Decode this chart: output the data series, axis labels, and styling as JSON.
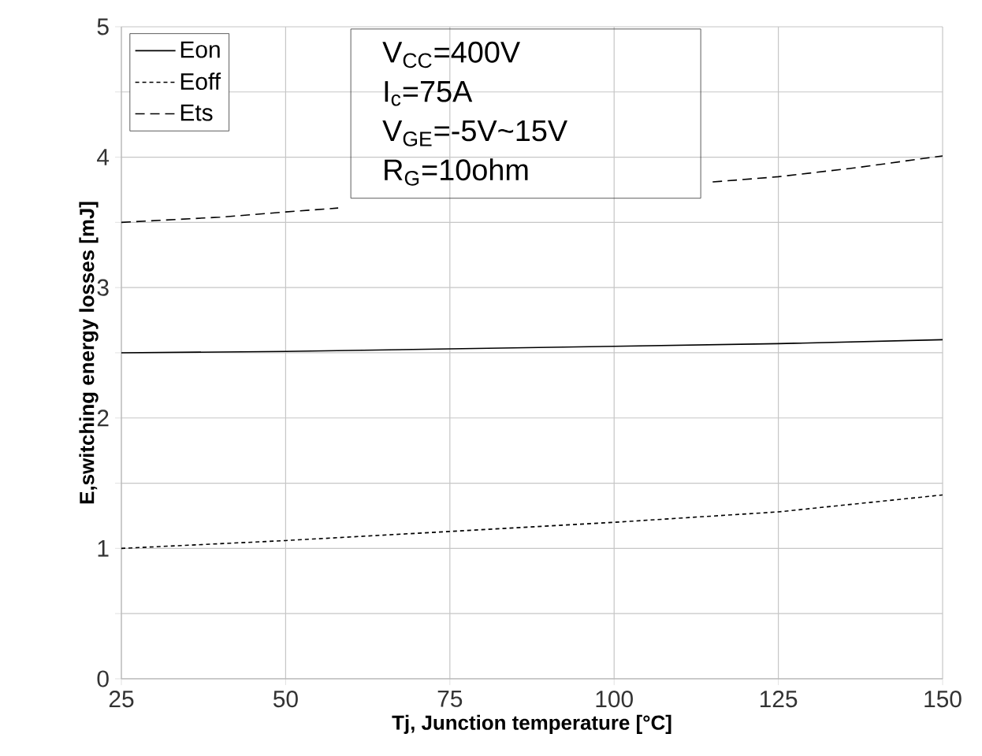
{
  "chart_data": {
    "type": "line",
    "xlabel": "Tj, Junction temperature [°C]",
    "ylabel": "E,switching energy losses [mJ]",
    "xlim": [
      25,
      150
    ],
    "xticks": [
      25,
      50,
      75,
      100,
      125,
      150
    ],
    "ylim": [
      0,
      5
    ],
    "yticks": [
      0,
      {
        "value": 0.5,
        "label": null
      },
      1,
      {
        "value": 1.5,
        "label": null
      },
      2,
      {
        "value": 2.5,
        "label": null
      },
      3,
      {
        "value": 3.5,
        "label": null
      },
      4,
      {
        "value": 4.5,
        "label": null
      },
      5
    ],
    "grid": true,
    "legend": "top left",
    "series": [
      {
        "name": "Eon",
        "color": "#000000",
        "line_style": "solid",
        "x": [
          25,
          50,
          75,
          100,
          125,
          150
        ],
        "values": [
          2.5,
          2.51,
          2.53,
          2.55,
          2.57,
          2.6
        ]
      },
      {
        "name": "Eoff",
        "color": "#000000",
        "line_style": "dotted",
        "x": [
          25,
          50,
          75,
          100,
          125,
          150
        ],
        "values": [
          1.0,
          1.06,
          1.13,
          1.2,
          1.28,
          1.41
        ]
      },
      {
        "name": "Ets",
        "color": "#000000",
        "line_style": "dashed",
        "x": [
          25,
          40,
          50,
          58,
          86,
          115,
          125,
          137,
          150
        ],
        "values": [
          3.5,
          3.54,
          3.58,
          3.61,
          null,
          3.81,
          3.85,
          3.92,
          4.01
        ]
      }
    ],
    "annotations": [
      "V$_{CC}$=400V",
      "I$_{c}$=75A",
      "V$_{GE}$=-5V~15V",
      "R$_{G}$=10ohm"
    ]
  }
}
